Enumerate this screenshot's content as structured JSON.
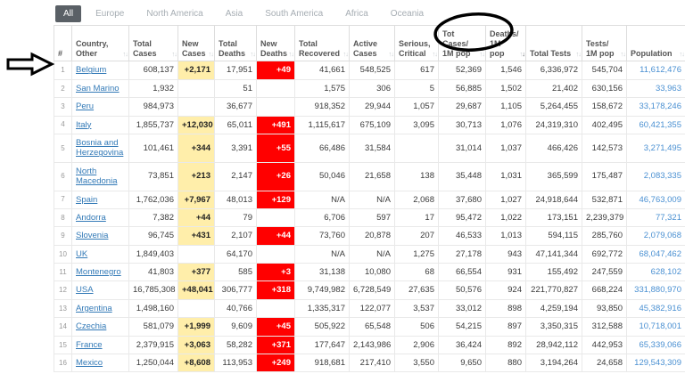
{
  "tabs": [
    {
      "label": "All",
      "active": true
    },
    {
      "label": "Europe",
      "active": false
    },
    {
      "label": "North America",
      "active": false
    },
    {
      "label": "Asia",
      "active": false
    },
    {
      "label": "South America",
      "active": false
    },
    {
      "label": "Africa",
      "active": false
    },
    {
      "label": "Oceania",
      "active": false
    }
  ],
  "table": {
    "columns": [
      {
        "key": "rank",
        "label": "#",
        "sort": null
      },
      {
        "key": "country",
        "label": "Country, Other",
        "sort": "none"
      },
      {
        "key": "total_cases",
        "label": "Total Cases",
        "sort": "none"
      },
      {
        "key": "new_cases",
        "label": "New Cases",
        "sort": "none"
      },
      {
        "key": "total_deaths",
        "label": "Total Deaths",
        "sort": "none"
      },
      {
        "key": "new_deaths",
        "label": "New Deaths",
        "sort": "none"
      },
      {
        "key": "total_recovered",
        "label": "Total Recovered",
        "sort": "none"
      },
      {
        "key": "active_cases",
        "label": "Active Cases",
        "sort": "none"
      },
      {
        "key": "serious_critical",
        "label": "Serious, Critical",
        "sort": "none"
      },
      {
        "key": "tot_cases_1m",
        "label": "Tot Cases/ 1M pop",
        "sort": "none"
      },
      {
        "key": "deaths_1m",
        "label": "Deaths/ 1M pop",
        "sort": "desc"
      },
      {
        "key": "total_tests",
        "label": "Total Tests",
        "sort": "none"
      },
      {
        "key": "tests_1m",
        "label": "Tests/ 1M pop",
        "sort": "none"
      },
      {
        "key": "population",
        "label": "Population",
        "sort": "none"
      }
    ],
    "rows": [
      {
        "rank": "1",
        "country": "Belgium",
        "total_cases": "608,137",
        "new_cases": "+2,171",
        "total_deaths": "17,951",
        "new_deaths": "+49",
        "total_recovered": "41,661",
        "active_cases": "548,525",
        "serious_critical": "617",
        "tot_cases_1m": "52,369",
        "deaths_1m": "1,546",
        "total_tests": "6,336,972",
        "tests_1m": "545,704",
        "population": "11,612,476"
      },
      {
        "rank": "2",
        "country": "San Marino",
        "total_cases": "1,932",
        "new_cases": "",
        "total_deaths": "51",
        "new_deaths": "",
        "total_recovered": "1,575",
        "active_cases": "306",
        "serious_critical": "5",
        "tot_cases_1m": "56,885",
        "deaths_1m": "1,502",
        "total_tests": "21,402",
        "tests_1m": "630,156",
        "population": "33,963"
      },
      {
        "rank": "3",
        "country": "Peru",
        "total_cases": "984,973",
        "new_cases": "",
        "total_deaths": "36,677",
        "new_deaths": "",
        "total_recovered": "918,352",
        "active_cases": "29,944",
        "serious_critical": "1,057",
        "tot_cases_1m": "29,687",
        "deaths_1m": "1,105",
        "total_tests": "5,264,455",
        "tests_1m": "158,672",
        "population": "33,178,246"
      },
      {
        "rank": "4",
        "country": "Italy",
        "total_cases": "1,855,737",
        "new_cases": "+12,030",
        "total_deaths": "65,011",
        "new_deaths": "+491",
        "total_recovered": "1,115,617",
        "active_cases": "675,109",
        "serious_critical": "3,095",
        "tot_cases_1m": "30,713",
        "deaths_1m": "1,076",
        "total_tests": "24,319,310",
        "tests_1m": "402,495",
        "population": "60,421,355"
      },
      {
        "rank": "5",
        "country": "Bosnia and Herzegovina",
        "total_cases": "101,461",
        "new_cases": "+344",
        "total_deaths": "3,391",
        "new_deaths": "+55",
        "total_recovered": "66,486",
        "active_cases": "31,584",
        "serious_critical": "",
        "tot_cases_1m": "31,014",
        "deaths_1m": "1,037",
        "total_tests": "466,426",
        "tests_1m": "142,573",
        "population": "3,271,495"
      },
      {
        "rank": "6",
        "country": "North Macedonia",
        "total_cases": "73,851",
        "new_cases": "+213",
        "total_deaths": "2,147",
        "new_deaths": "+26",
        "total_recovered": "50,046",
        "active_cases": "21,658",
        "serious_critical": "138",
        "tot_cases_1m": "35,448",
        "deaths_1m": "1,031",
        "total_tests": "365,599",
        "tests_1m": "175,487",
        "population": "2,083,335"
      },
      {
        "rank": "7",
        "country": "Spain",
        "total_cases": "1,762,036",
        "new_cases": "+7,967",
        "total_deaths": "48,013",
        "new_deaths": "+129",
        "total_recovered": "N/A",
        "active_cases": "N/A",
        "serious_critical": "2,068",
        "tot_cases_1m": "37,680",
        "deaths_1m": "1,027",
        "total_tests": "24,918,644",
        "tests_1m": "532,871",
        "population": "46,763,009"
      },
      {
        "rank": "8",
        "country": "Andorra",
        "total_cases": "7,382",
        "new_cases": "+44",
        "total_deaths": "79",
        "new_deaths": "",
        "total_recovered": "6,706",
        "active_cases": "597",
        "serious_critical": "17",
        "tot_cases_1m": "95,472",
        "deaths_1m": "1,022",
        "total_tests": "173,151",
        "tests_1m": "2,239,379",
        "population": "77,321"
      },
      {
        "rank": "9",
        "country": "Slovenia",
        "total_cases": "96,745",
        "new_cases": "+431",
        "total_deaths": "2,107",
        "new_deaths": "+44",
        "total_recovered": "73,760",
        "active_cases": "20,878",
        "serious_critical": "207",
        "tot_cases_1m": "46,533",
        "deaths_1m": "1,013",
        "total_tests": "594,115",
        "tests_1m": "285,760",
        "population": "2,079,068"
      },
      {
        "rank": "10",
        "country": "UK",
        "total_cases": "1,849,403",
        "new_cases": "",
        "total_deaths": "64,170",
        "new_deaths": "",
        "total_recovered": "N/A",
        "active_cases": "N/A",
        "serious_critical": "1,275",
        "tot_cases_1m": "27,178",
        "deaths_1m": "943",
        "total_tests": "47,141,344",
        "tests_1m": "692,772",
        "population": "68,047,462"
      },
      {
        "rank": "11",
        "country": "Montenegro",
        "total_cases": "41,803",
        "new_cases": "+377",
        "total_deaths": "585",
        "new_deaths": "+3",
        "total_recovered": "31,138",
        "active_cases": "10,080",
        "serious_critical": "68",
        "tot_cases_1m": "66,554",
        "deaths_1m": "931",
        "total_tests": "155,492",
        "tests_1m": "247,559",
        "population": "628,102"
      },
      {
        "rank": "12",
        "country": "USA",
        "total_cases": "16,785,308",
        "new_cases": "+48,041",
        "total_deaths": "306,777",
        "new_deaths": "+318",
        "total_recovered": "9,749,982",
        "active_cases": "6,728,549",
        "serious_critical": "27,635",
        "tot_cases_1m": "50,576",
        "deaths_1m": "924",
        "total_tests": "221,770,827",
        "tests_1m": "668,224",
        "population": "331,880,970"
      },
      {
        "rank": "13",
        "country": "Argentina",
        "total_cases": "1,498,160",
        "new_cases": "",
        "total_deaths": "40,766",
        "new_deaths": "",
        "total_recovered": "1,335,317",
        "active_cases": "122,077",
        "serious_critical": "3,537",
        "tot_cases_1m": "33,012",
        "deaths_1m": "898",
        "total_tests": "4,259,194",
        "tests_1m": "93,850",
        "population": "45,382,916"
      },
      {
        "rank": "14",
        "country": "Czechia",
        "total_cases": "581,079",
        "new_cases": "+1,999",
        "total_deaths": "9,609",
        "new_deaths": "+45",
        "total_recovered": "505,922",
        "active_cases": "65,548",
        "serious_critical": "506",
        "tot_cases_1m": "54,215",
        "deaths_1m": "897",
        "total_tests": "3,350,315",
        "tests_1m": "312,588",
        "population": "10,718,001"
      },
      {
        "rank": "15",
        "country": "France",
        "total_cases": "2,379,915",
        "new_cases": "+3,063",
        "total_deaths": "58,282",
        "new_deaths": "+371",
        "total_recovered": "177,647",
        "active_cases": "2,143,986",
        "serious_critical": "2,906",
        "tot_cases_1m": "36,424",
        "deaths_1m": "892",
        "total_tests": "28,942,112",
        "tests_1m": "442,953",
        "population": "65,339,066"
      },
      {
        "rank": "16",
        "country": "Mexico",
        "total_cases": "1,250,044",
        "new_cases": "+8,608",
        "total_deaths": "113,953",
        "new_deaths": "+249",
        "total_recovered": "918,681",
        "active_cases": "217,410",
        "serious_critical": "3,550",
        "tot_cases_1m": "9,650",
        "deaths_1m": "880",
        "total_tests": "3,194,264",
        "tests_1m": "24,658",
        "population": "129,543,309"
      }
    ]
  },
  "annotations": {
    "circle_target": "Tot Cases/ 1M pop column header",
    "arrow_target": "row 1 Belgium"
  },
  "colors": {
    "active_tab_bg": "#5a6066",
    "active_tab_text": "#ffffff",
    "inactive_tab_text": "#a6adb3",
    "country_link": "#337ab7",
    "population_link": "#4a90d2",
    "new_cases_bg": "#FFEEAA",
    "new_deaths_bg": "#FF0000",
    "new_deaths_text": "#ffffff",
    "header_text": "#555555",
    "cell_text": "#3a3a3a",
    "annotation": "#000000"
  }
}
